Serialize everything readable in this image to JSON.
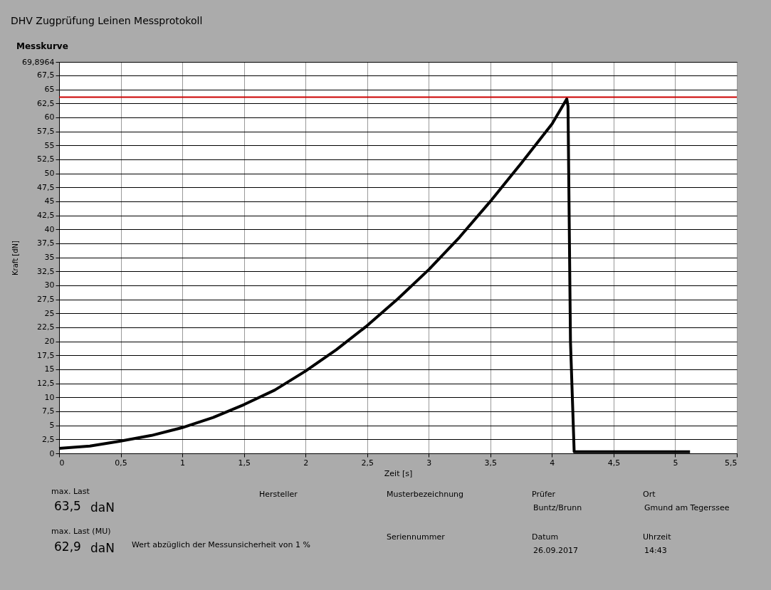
{
  "chart_data": {
    "type": "line",
    "title": "DHV Zugprüfung Leinen Messprotokoll",
    "subtitle": "Messkurve",
    "xlabel": "Zeit [s]",
    "ylabel": "Kraft [dN]",
    "x": [
      0,
      0.25,
      0.5,
      0.75,
      1,
      1.25,
      1.5,
      1.75,
      2,
      2.25,
      2.5,
      2.75,
      3,
      3.25,
      3.5,
      3.75,
      4,
      4.12,
      4.13,
      4.15,
      4.18,
      4.5,
      5.12
    ],
    "series": [
      {
        "color": "#000000",
        "values": [
          0.9,
          1.3,
          2.2,
          3.2,
          4.6,
          6.4,
          8.7,
          11.3,
          14.7,
          18.5,
          22.8,
          27.6,
          32.8,
          38.6,
          45,
          51.8,
          58.8,
          63.3,
          62,
          20,
          0.3,
          0.3,
          0.3
        ]
      }
    ],
    "xlim": [
      0,
      5.5
    ],
    "xticks": [
      0,
      {
        "value": 0.5,
        "label": "0,5"
      },
      1,
      {
        "value": 1.5,
        "label": "1,5"
      },
      2,
      {
        "value": 2.5,
        "label": "2,5"
      },
      3,
      {
        "value": 3.5,
        "label": "3,5"
      },
      4,
      {
        "value": 4.5,
        "label": "4,5"
      },
      5,
      {
        "value": 5.5,
        "label": "5,5"
      }
    ],
    "ylim": [
      0,
      69.8964
    ],
    "yticks": [
      0,
      {
        "value": 2.5,
        "label": "2,5"
      },
      5,
      {
        "value": 7.5,
        "label": "7,5"
      },
      10,
      {
        "value": 12.5,
        "label": "12,5"
      },
      15,
      {
        "value": 17.5,
        "label": "17,5"
      },
      20,
      {
        "value": 22.5,
        "label": "22,5"
      },
      25,
      {
        "value": 27.5,
        "label": "27,5"
      },
      30,
      {
        "value": 32.5,
        "label": "32,5"
      },
      35,
      {
        "value": 37.5,
        "label": "37,5"
      },
      40,
      {
        "value": 42.5,
        "label": "42,5"
      },
      45,
      {
        "value": 47.5,
        "label": "47,5"
      },
      50,
      {
        "value": 52.5,
        "label": "52,5"
      },
      55,
      {
        "value": 57.5,
        "label": "57,5"
      },
      60,
      {
        "value": 62.5,
        "label": "62,5"
      },
      65,
      {
        "value": 67.5,
        "label": "67,5"
      },
      {
        "value": 69.8964,
        "label": "69,8964"
      }
    ],
    "ref_lines": [
      {
        "axis": "y",
        "value": 63.6,
        "color": "#cc0000"
      }
    ],
    "grid": true,
    "marker": "none",
    "line_style": "solid",
    "annotations": [
      "max. Last",
      "63,5",
      "daN",
      "max. Last (MU)",
      "62,9",
      "daN",
      "Wert abzüglich der Messunsicherheit von 1 %",
      "Hersteller",
      "Musterbezeichnung",
      "Seriennummer",
      "Prüfer",
      "Buntz/Brunn",
      "Datum",
      "26.09.2017",
      "Ort",
      "Gmund am Tegerssee",
      "Uhrzeit",
      "14:43"
    ]
  }
}
